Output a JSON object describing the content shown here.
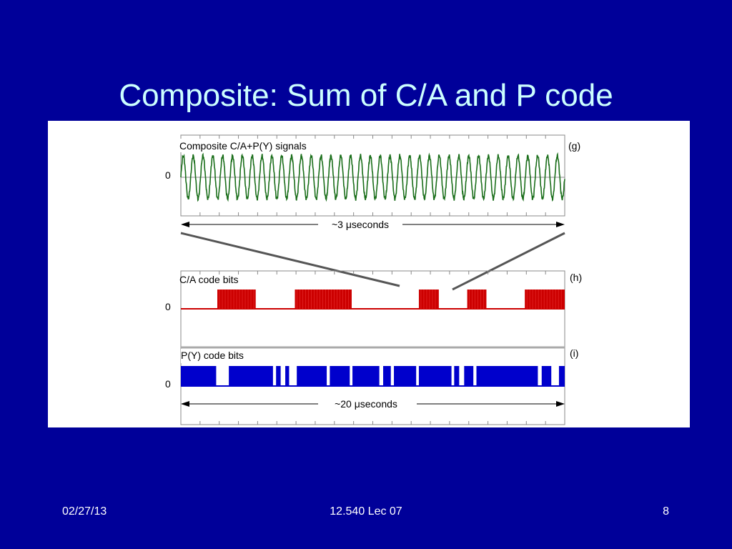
{
  "slide": {
    "title": "Composite: Sum of C/A and P code",
    "footer_date": "02/27/13",
    "footer_course": "12.540 Lec 07",
    "footer_page": "8"
  },
  "figure": {
    "panel_g": {
      "title": "Composite C/A+P(Y) signals",
      "tag": "(g)",
      "zero_label": "0",
      "span_label": "~3 μseconds",
      "color": "#1a6e1a"
    },
    "panel_h": {
      "title": "C/A code bits",
      "tag": "(h)",
      "zero_label": "0",
      "color": "#cc0000",
      "blocks": [
        [
          0.095,
          0.195
        ],
        [
          0.297,
          0.445
        ],
        [
          0.62,
          0.672
        ],
        [
          0.746,
          0.796
        ],
        [
          0.896,
          1.0
        ]
      ]
    },
    "panel_i": {
      "title": "P(Y) code bits",
      "tag": "(i)",
      "zero_label": "0",
      "span_label": "~20 μseconds",
      "color": "#0000cc",
      "blocks": [
        [
          0.0,
          0.092
        ],
        [
          0.125,
          0.24
        ],
        [
          0.248,
          0.26
        ],
        [
          0.272,
          0.282
        ],
        [
          0.302,
          0.38
        ],
        [
          0.388,
          0.44
        ],
        [
          0.447,
          0.517
        ],
        [
          0.527,
          0.547
        ],
        [
          0.555,
          0.613
        ],
        [
          0.62,
          0.705
        ],
        [
          0.712,
          0.725
        ],
        [
          0.738,
          0.762
        ],
        [
          0.77,
          0.93
        ],
        [
          0.94,
          0.965
        ],
        [
          0.985,
          1.0
        ]
      ]
    }
  }
}
